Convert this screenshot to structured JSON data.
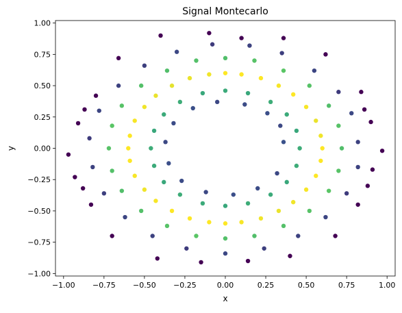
{
  "chart_data": {
    "type": "scatter",
    "title": "Signal Montecarlo",
    "xlabel": "x",
    "ylabel": "y",
    "xlim": [
      -1.05,
      1.05
    ],
    "ylim": [
      -1.02,
      1.02
    ],
    "xticks": [
      -1.0,
      -0.75,
      -0.5,
      -0.25,
      0.0,
      0.25,
      0.5,
      0.75,
      1.0
    ],
    "xtick_labels": [
      "−1.00",
      "−0.75",
      "−0.50",
      "−0.25",
      "0.00",
      "0.25",
      "0.50",
      "0.75",
      "1.00"
    ],
    "yticks": [
      -1.0,
      -0.75,
      -0.5,
      -0.25,
      0.0,
      0.25,
      0.5,
      0.75,
      1.0
    ],
    "ytick_labels": [
      "−1.00",
      "−0.75",
      "−0.50",
      "−0.25",
      "0.00",
      "0.25",
      "0.50",
      "0.75",
      "1.00"
    ],
    "grid": false,
    "legend": "none",
    "colormap": "viridis",
    "color_encoding": "point density",
    "colors": {
      "low_density": "#440154",
      "mid_low": "#3b528b",
      "mid": "#21918c",
      "mid_high": "#5ec962",
      "high_density": "#fde725"
    },
    "series": [
      {
        "points": [
          [
            0.6,
            0.0,
            1.0
          ],
          [
            0.59,
            0.1,
            0.98
          ],
          [
            0.56,
            0.22,
            0.97
          ],
          [
            0.5,
            0.33,
            0.99
          ],
          [
            0.42,
            0.43,
            1.0
          ],
          [
            0.33,
            0.5,
            0.99
          ],
          [
            0.22,
            0.56,
            1.0
          ],
          [
            0.1,
            0.59,
            1.0
          ],
          [
            0.0,
            0.6,
            1.0
          ],
          [
            -0.1,
            0.59,
            0.98
          ],
          [
            -0.22,
            0.56,
            0.97
          ],
          [
            -0.33,
            0.5,
            0.96
          ],
          [
            -0.43,
            0.42,
            0.97
          ],
          [
            -0.5,
            0.33,
            0.98
          ],
          [
            -0.56,
            0.22,
            0.99
          ],
          [
            -0.59,
            0.1,
            1.0
          ],
          [
            -0.6,
            0.0,
            1.0
          ],
          [
            -0.59,
            -0.1,
            1.0
          ],
          [
            -0.56,
            -0.22,
            0.99
          ],
          [
            -0.5,
            -0.33,
            0.98
          ],
          [
            -0.43,
            -0.42,
            0.99
          ],
          [
            -0.33,
            -0.5,
            1.0
          ],
          [
            -0.22,
            -0.56,
            1.0
          ],
          [
            -0.1,
            -0.59,
            1.0
          ],
          [
            0.0,
            -0.6,
            1.0
          ],
          [
            0.1,
            -0.59,
            0.99
          ],
          [
            0.22,
            -0.56,
            0.98
          ],
          [
            0.33,
            -0.5,
            0.97
          ],
          [
            0.42,
            -0.43,
            0.98
          ],
          [
            0.5,
            -0.33,
            0.99
          ],
          [
            0.56,
            -0.22,
            1.0
          ],
          [
            0.59,
            -0.1,
            1.0
          ],
          [
            0.72,
            0.0,
            0.7
          ],
          [
            0.7,
            0.18,
            0.72
          ],
          [
            0.64,
            0.34,
            0.7
          ],
          [
            0.52,
            0.5,
            0.72
          ],
          [
            0.36,
            0.62,
            0.73
          ],
          [
            0.18,
            0.7,
            0.72
          ],
          [
            0.0,
            0.72,
            0.7
          ],
          [
            -0.18,
            0.7,
            0.71
          ],
          [
            -0.36,
            0.62,
            0.7
          ],
          [
            -0.52,
            0.5,
            0.71
          ],
          [
            -0.64,
            0.34,
            0.72
          ],
          [
            -0.7,
            0.18,
            0.73
          ],
          [
            -0.72,
            0.0,
            0.72
          ],
          [
            -0.7,
            -0.18,
            0.71
          ],
          [
            -0.64,
            -0.34,
            0.7
          ],
          [
            -0.52,
            -0.5,
            0.71
          ],
          [
            -0.36,
            -0.62,
            0.72
          ],
          [
            -0.18,
            -0.7,
            0.73
          ],
          [
            0.0,
            -0.72,
            0.71
          ],
          [
            0.18,
            -0.7,
            0.7
          ],
          [
            0.36,
            -0.62,
            0.71
          ],
          [
            0.52,
            -0.5,
            0.72
          ],
          [
            0.64,
            -0.34,
            0.73
          ],
          [
            0.7,
            -0.18,
            0.72
          ],
          [
            0.46,
            0.0,
            0.62
          ],
          [
            0.44,
            0.14,
            0.6
          ],
          [
            0.38,
            0.27,
            0.61
          ],
          [
            0.28,
            0.37,
            0.62
          ],
          [
            0.14,
            0.44,
            0.6
          ],
          [
            0.0,
            0.46,
            0.61
          ],
          [
            -0.14,
            0.44,
            0.6
          ],
          [
            -0.28,
            0.37,
            0.62
          ],
          [
            -0.38,
            0.27,
            0.61
          ],
          [
            -0.44,
            0.14,
            0.6
          ],
          [
            -0.46,
            0.0,
            0.62
          ],
          [
            -0.44,
            -0.14,
            0.61
          ],
          [
            -0.38,
            -0.27,
            0.6
          ],
          [
            -0.28,
            -0.37,
            0.62
          ],
          [
            -0.14,
            -0.44,
            0.61
          ],
          [
            0.0,
            -0.46,
            0.6
          ],
          [
            0.14,
            -0.44,
            0.62
          ],
          [
            0.28,
            -0.37,
            0.61
          ],
          [
            0.38,
            -0.27,
            0.6
          ],
          [
            0.44,
            -0.14,
            0.62
          ],
          [
            0.82,
            0.05,
            0.2
          ],
          [
            0.78,
            0.28,
            0.22
          ],
          [
            0.7,
            0.45,
            0.18
          ],
          [
            0.55,
            0.62,
            0.21
          ],
          [
            0.35,
            0.76,
            0.19
          ],
          [
            0.15,
            0.82,
            0.2
          ],
          [
            -0.08,
            0.83,
            0.18
          ],
          [
            -0.3,
            0.77,
            0.22
          ],
          [
            -0.5,
            0.66,
            0.19
          ],
          [
            -0.66,
            0.5,
            0.2
          ],
          [
            -0.78,
            0.3,
            0.21
          ],
          [
            -0.84,
            0.08,
            0.18
          ],
          [
            -0.82,
            -0.15,
            0.2
          ],
          [
            -0.75,
            -0.36,
            0.19
          ],
          [
            -0.62,
            -0.55,
            0.21
          ],
          [
            -0.45,
            -0.7,
            0.2
          ],
          [
            -0.24,
            -0.8,
            0.18
          ],
          [
            0.0,
            -0.84,
            0.22
          ],
          [
            0.24,
            -0.8,
            0.19
          ],
          [
            0.45,
            -0.7,
            0.2
          ],
          [
            0.62,
            -0.55,
            0.21
          ],
          [
            0.75,
            -0.36,
            0.18
          ],
          [
            0.82,
            -0.15,
            0.2
          ],
          [
            0.36,
            0.05,
            0.25
          ],
          [
            0.34,
            0.18,
            0.22
          ],
          [
            0.26,
            0.28,
            0.24
          ],
          [
            0.12,
            0.35,
            0.23
          ],
          [
            -0.05,
            0.37,
            0.22
          ],
          [
            -0.2,
            0.32,
            0.24
          ],
          [
            -0.32,
            0.2,
            0.23
          ],
          [
            -0.37,
            0.05,
            0.22
          ],
          [
            -0.35,
            -0.12,
            0.24
          ],
          [
            -0.27,
            -0.26,
            0.23
          ],
          [
            -0.12,
            -0.35,
            0.22
          ],
          [
            0.05,
            -0.37,
            0.24
          ],
          [
            0.2,
            -0.32,
            0.23
          ],
          [
            0.32,
            -0.2,
            0.22
          ],
          [
            -0.97,
            -0.05,
            0.0
          ],
          [
            -0.91,
            0.2,
            0.0
          ],
          [
            -0.93,
            -0.23,
            0.0
          ],
          [
            -0.87,
            0.31,
            0.0
          ],
          [
            -0.88,
            -0.32,
            0.0
          ],
          [
            -0.8,
            0.42,
            0.0
          ],
          [
            -0.83,
            -0.45,
            0.0
          ],
          [
            0.97,
            -0.02,
            0.0
          ],
          [
            0.9,
            0.21,
            0.0
          ],
          [
            0.91,
            -0.17,
            0.0
          ],
          [
            0.86,
            0.31,
            0.0
          ],
          [
            0.88,
            -0.3,
            0.0
          ],
          [
            0.84,
            0.45,
            0.0
          ],
          [
            0.82,
            -0.45,
            0.0
          ],
          [
            -0.4,
            0.9,
            0.0
          ],
          [
            -0.1,
            0.92,
            0.0
          ],
          [
            0.1,
            0.88,
            0.0
          ],
          [
            -0.42,
            -0.88,
            0.0
          ],
          [
            -0.15,
            -0.91,
            0.0
          ],
          [
            0.14,
            -0.9,
            0.0
          ],
          [
            0.4,
            -0.86,
            0.0
          ],
          [
            0.36,
            0.88,
            0.0
          ],
          [
            0.62,
            0.75,
            0.0
          ],
          [
            -0.66,
            0.72,
            0.0
          ],
          [
            -0.7,
            -0.7,
            0.0
          ],
          [
            0.68,
            -0.7,
            0.0
          ]
        ]
      }
    ]
  }
}
